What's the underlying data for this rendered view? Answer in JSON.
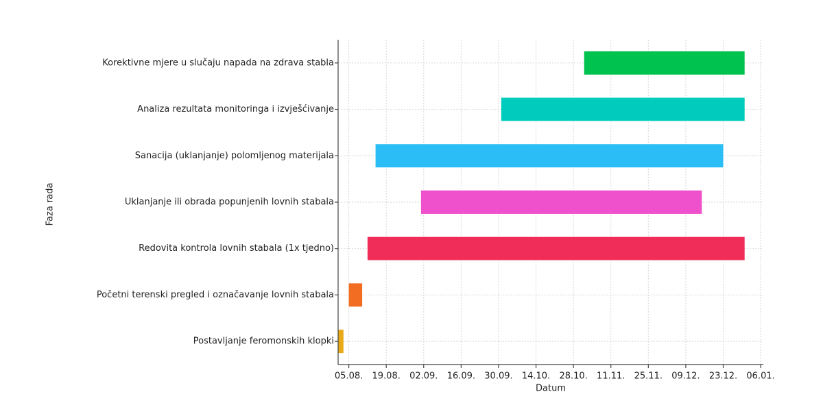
{
  "chart_data": {
    "type": "gantt",
    "x_label": "Datum",
    "y_label": "Faza rada",
    "tasks": [
      {
        "name": "Korektivne mjere u slučaju napada na zdrava stabla",
        "start": "01.11.",
        "end": "31.12.",
        "color": "#00c24e"
      },
      {
        "name": "Analiza rezultata monitoringa i izvješćivanje",
        "start": "01.10.",
        "end": "31.12.",
        "color": "#00cbbd"
      },
      {
        "name": "Sanacija (uklanjanje) polomljenog materijala",
        "start": "15.08.",
        "end": "23.12.",
        "color": "#2bbdf6"
      },
      {
        "name": "Uklanjanje ili obrada popunjenih lovnih stabala",
        "start": "01.09.",
        "end": "15.12.",
        "color": "#ef50cb"
      },
      {
        "name": "Redovita kontrola lovnih stabala (1x tjedno)",
        "start": "12.08.",
        "end": "31.12.",
        "color": "#f02d58"
      },
      {
        "name": "Početni terenski pregled i označavanje lovnih stabala",
        "start": "05.08.",
        "end": "10.08.",
        "color": "#f26c22"
      },
      {
        "name": "Postavljanje feromonskih klopki",
        "start": "01.08.",
        "end": "03.08.",
        "color": "#e8aa18"
      }
    ],
    "xlim": [
      "01.08.",
      "07.01."
    ],
    "xticks": [
      "05.08.",
      "19.08.",
      "02.09.",
      "16.09.",
      "30.09.",
      "14.10.",
      "28.10.",
      "11.11.",
      "25.11.",
      "09.12.",
      "23.12.",
      "06.01."
    ],
    "grid": true
  }
}
